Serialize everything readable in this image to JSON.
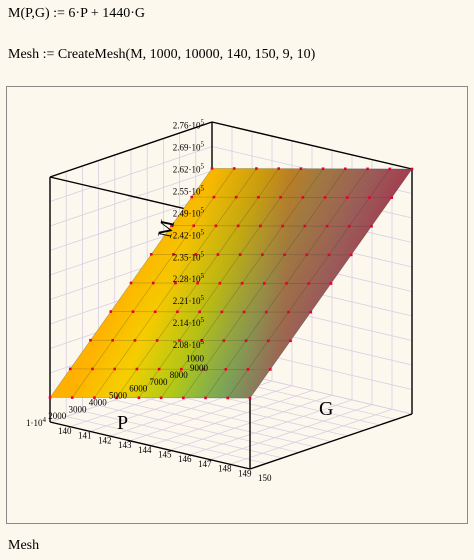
{
  "worksheet": {
    "definition": "M(P,G) := 6·P + 1440·G",
    "mesh_statement": "Mesh := CreateMesh(M, 1000, 10000, 140, 150, 9, 10)",
    "plot_caption": "Mesh"
  },
  "colors": {
    "background": "#fdf8ee",
    "frame": "#8a8a8a",
    "grid": "#d8cfe2",
    "mesh_points": "#e8002a"
  },
  "chart_data": {
    "type": "surface",
    "function": "M = 6·P + 1440·G",
    "xlabel": "P",
    "ylabel": "G",
    "zlabel": "M",
    "x_range": [
      1000,
      10000
    ],
    "y_range": [
      140,
      150
    ],
    "x_points": 9,
    "y_points": 10,
    "z_range": [
      200000,
      276000
    ],
    "x_ticks": [
      "1·10",
      "2000",
      "3000",
      "4000",
      "5000",
      "6000",
      "7000",
      "8000",
      "9000"
    ],
    "y_ticks": [
      "140",
      "141",
      "142",
      "143",
      "144",
      "145",
      "146",
      "147",
      "148",
      "149",
      "150"
    ],
    "z_ticks": [
      "2.08·10",
      "2.14·10",
      "2.21·10",
      "2.28·10",
      "2.35·10",
      "2.42·10",
      "2.49·10",
      "2.55·10",
      "2.62·10",
      "2.69·10",
      "2.76·10"
    ],
    "z_tick_exponent": "5",
    "x_tick_exponent_first": "4",
    "top_z_label": "1000"
  }
}
